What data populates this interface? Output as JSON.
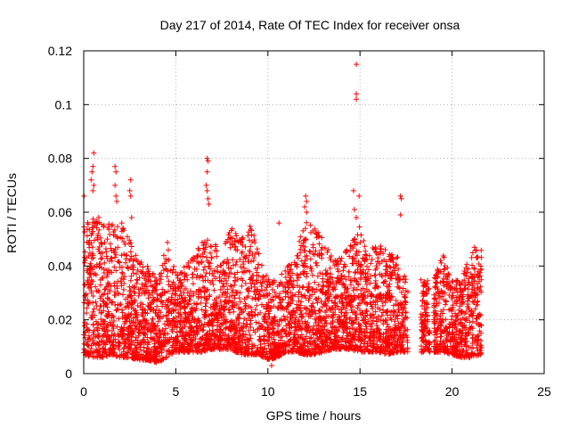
{
  "chart_data": {
    "type": "scatter",
    "title": "Day 217 of 2014, Rate Of TEC Index for receiver onsa",
    "xlabel": "GPS time / hours",
    "ylabel": "ROTI / TECUs",
    "xlim": [
      0,
      25
    ],
    "ylim": [
      0,
      0.12
    ],
    "xticks": [
      "0",
      "5",
      "10",
      "15",
      "20",
      "25"
    ],
    "yticks": [
      "0",
      "0.02",
      "0.04",
      "0.06",
      "0.08",
      "0.1",
      "0.12"
    ],
    "grid": true,
    "marker": "+",
    "color": "#ff0000",
    "data_coverage": [
      [
        0,
        17.6
      ],
      [
        18.3,
        18.8
      ],
      [
        19.0,
        21.6
      ]
    ],
    "envelope": {
      "x": [
        0,
        0.5,
        1,
        1.5,
        2,
        2.5,
        3,
        3.5,
        4,
        4.5,
        5,
        5.5,
        6,
        6.5,
        7,
        7.5,
        8,
        8.5,
        9,
        9.5,
        10,
        10.5,
        11,
        11.5,
        12,
        12.5,
        13,
        13.5,
        14,
        14.5,
        15,
        15.5,
        16,
        16.5,
        17,
        17.5,
        18.5,
        19,
        19.5,
        20,
        20.5,
        21,
        21.5
      ],
      "y_max": [
        0.055,
        0.06,
        0.057,
        0.056,
        0.057,
        0.05,
        0.042,
        0.04,
        0.035,
        0.05,
        0.038,
        0.04,
        0.045,
        0.05,
        0.05,
        0.045,
        0.055,
        0.05,
        0.058,
        0.045,
        0.035,
        0.035,
        0.04,
        0.045,
        0.057,
        0.055,
        0.05,
        0.045,
        0.045,
        0.048,
        0.055,
        0.045,
        0.05,
        0.045,
        0.045,
        0.035,
        0.035,
        0.035,
        0.045,
        0.035,
        0.035,
        0.045,
        0.05
      ],
      "y_min": [
        0.007,
        0.006,
        0.006,
        0.007,
        0.006,
        0.006,
        0.005,
        0.005,
        0.004,
        0.006,
        0.008,
        0.008,
        0.008,
        0.008,
        0.009,
        0.009,
        0.009,
        0.007,
        0.007,
        0.007,
        0.005,
        0.006,
        0.008,
        0.008,
        0.007,
        0.007,
        0.008,
        0.009,
        0.009,
        0.009,
        0.008,
        0.008,
        0.008,
        0.007,
        0.008,
        0.008,
        0.008,
        0.008,
        0.008,
        0.007,
        0.006,
        0.006,
        0.007
      ]
    },
    "outliers": [
      {
        "x": 14.8,
        "y": 0.115
      },
      {
        "x": 14.8,
        "y": 0.104
      },
      {
        "x": 14.8,
        "y": 0.102
      },
      {
        "x": 0.55,
        "y": 0.082
      },
      {
        "x": 0.5,
        "y": 0.077
      },
      {
        "x": 0.45,
        "y": 0.075
      },
      {
        "x": 0.4,
        "y": 0.072
      },
      {
        "x": 0.55,
        "y": 0.07
      },
      {
        "x": 0.5,
        "y": 0.068
      },
      {
        "x": 0.02,
        "y": 0.066
      },
      {
        "x": 6.7,
        "y": 0.08
      },
      {
        "x": 6.75,
        "y": 0.079
      },
      {
        "x": 6.7,
        "y": 0.075
      },
      {
        "x": 6.65,
        "y": 0.07
      },
      {
        "x": 6.7,
        "y": 0.068
      },
      {
        "x": 6.75,
        "y": 0.065
      },
      {
        "x": 6.8,
        "y": 0.063
      },
      {
        "x": 1.7,
        "y": 0.077
      },
      {
        "x": 1.75,
        "y": 0.075
      },
      {
        "x": 1.7,
        "y": 0.07
      },
      {
        "x": 1.75,
        "y": 0.066
      },
      {
        "x": 1.8,
        "y": 0.064
      },
      {
        "x": 2.55,
        "y": 0.072
      },
      {
        "x": 2.5,
        "y": 0.068
      },
      {
        "x": 2.55,
        "y": 0.066
      },
      {
        "x": 2.6,
        "y": 0.058
      },
      {
        "x": 12.05,
        "y": 0.066
      },
      {
        "x": 12.1,
        "y": 0.064
      },
      {
        "x": 12.0,
        "y": 0.062
      },
      {
        "x": 12.1,
        "y": 0.06
      },
      {
        "x": 14.65,
        "y": 0.068
      },
      {
        "x": 14.95,
        "y": 0.066
      },
      {
        "x": 14.7,
        "y": 0.061
      },
      {
        "x": 14.8,
        "y": 0.058
      },
      {
        "x": 17.2,
        "y": 0.066
      },
      {
        "x": 17.25,
        "y": 0.065
      },
      {
        "x": 17.2,
        "y": 0.059
      },
      {
        "x": 10.6,
        "y": 0.056
      },
      {
        "x": 9.8,
        "y": 0.008
      },
      {
        "x": 10.2,
        "y": 0.003
      }
    ]
  }
}
